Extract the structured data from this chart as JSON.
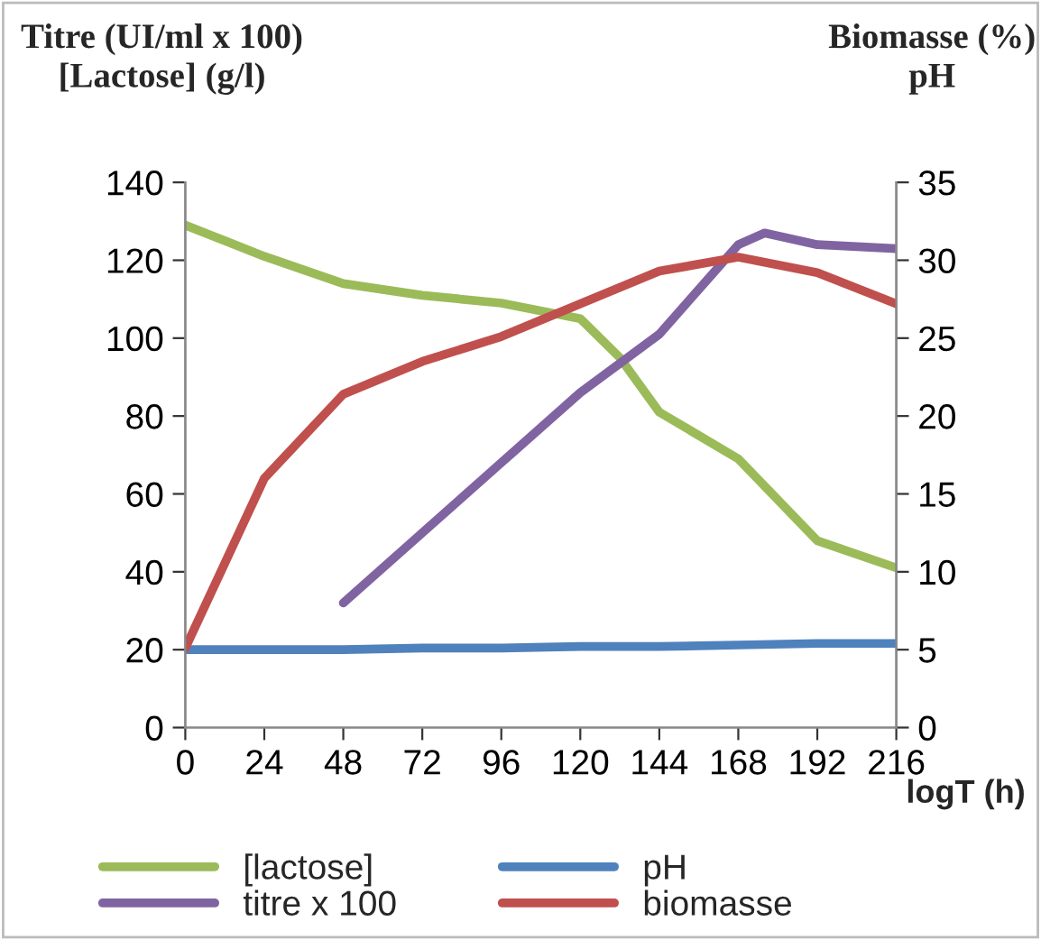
{
  "chart_data": {
    "type": "line",
    "ylabel": "Titre (UI/ml x 100)\n[Lactose] (g/l)",
    "y2label": "Biomasse (%)\npH",
    "xlabel": "logT (h)",
    "xlim": [
      0,
      216
    ],
    "xticks": [
      0,
      24,
      48,
      72,
      96,
      120,
      144,
      168,
      192,
      216
    ],
    "ylim": [
      0,
      140
    ],
    "yticks": [
      0,
      20,
      40,
      60,
      80,
      100,
      120,
      140
    ],
    "y2lim": [
      0,
      35
    ],
    "y2ticks": [
      0,
      5,
      10,
      15,
      20,
      25,
      30,
      35
    ],
    "grid": false,
    "legend": "bottom",
    "line_style": "solid",
    "marker": "none",
    "series": [
      {
        "name": "[lactose]",
        "color": "#9bbb59",
        "x": [
          0,
          24,
          48,
          72,
          96,
          120,
          132,
          144,
          168,
          192,
          216
        ],
        "values": [
          129,
          121,
          114,
          111,
          109,
          105,
          95,
          81,
          69,
          48,
          41
        ]
      },
      {
        "name": "titre x 100",
        "color": "#8064a2",
        "x": [
          48,
          72,
          96,
          120,
          144,
          168,
          176,
          192,
          216
        ],
        "values": [
          32,
          50,
          68,
          86,
          101,
          124,
          127,
          124,
          123
        ]
      },
      {
        "name": "pH",
        "color": "#4f81bd",
        "axis": "y2",
        "x": [
          0,
          24,
          48,
          72,
          96,
          120,
          144,
          168,
          192,
          216
        ],
        "values": [
          5.0,
          5.0,
          5.0,
          5.1,
          5.1,
          5.2,
          5.2,
          5.3,
          5.4,
          5.4
        ]
      },
      {
        "name": "biomasse",
        "color": "#c0504d",
        "axis": "y2",
        "x": [
          0,
          24,
          48,
          72,
          96,
          120,
          144,
          168,
          192,
          216
        ],
        "values": [
          5.1,
          16,
          21.4,
          23.5,
          25.1,
          27.2,
          29.3,
          30.2,
          29.2,
          27.2
        ]
      }
    ]
  }
}
